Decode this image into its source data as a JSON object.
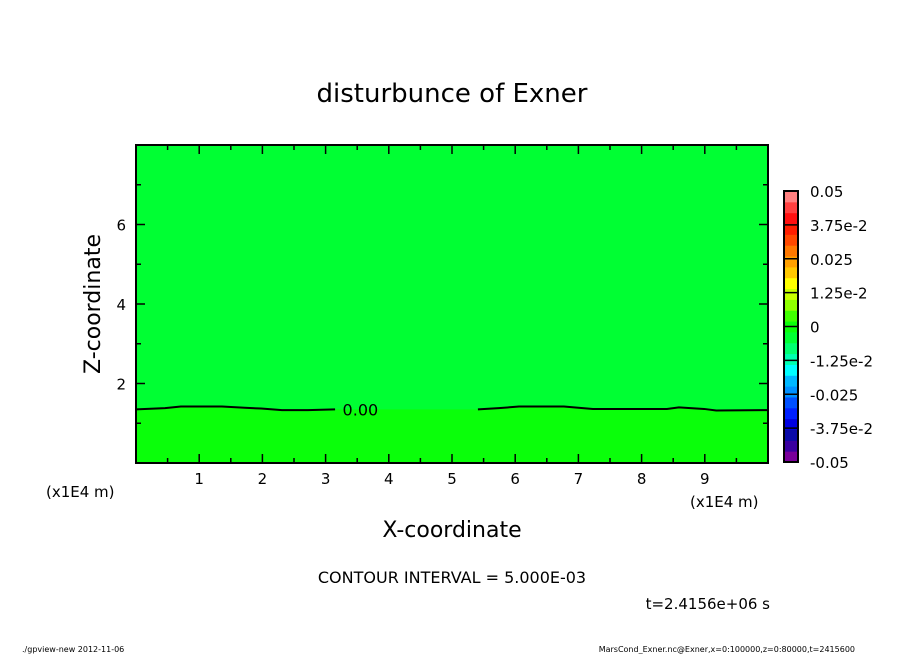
{
  "chart_data": {
    "type": "heatmap",
    "subtype": "contour",
    "title": "disturbunce of Exner",
    "xlabel": "X-coordinate",
    "ylabel": "Z-coordinate",
    "x_unit_label": "(x1E4 m)",
    "z_unit_label": "(x1E4 m)",
    "xlim": [
      0,
      10
    ],
    "ylim": [
      0,
      8
    ],
    "x_ticks": [
      1,
      2,
      3,
      4,
      5,
      6,
      7,
      8,
      9
    ],
    "y_ticks": [
      2,
      4,
      6
    ],
    "contour_interval_text": "CONTOUR INTERVAL = 5.000E-03",
    "time_text": "t=2.4156e+06 s",
    "contours": [
      {
        "level_label": "0.00",
        "label_x": 3.55,
        "points": [
          [
            0,
            1.35
          ],
          [
            0.46,
            1.38
          ],
          [
            0.71,
            1.42
          ],
          [
            1.36,
            1.42
          ],
          [
            1.72,
            1.39
          ],
          [
            1.98,
            1.37
          ],
          [
            2.31,
            1.33
          ],
          [
            2.72,
            1.33
          ],
          [
            3.15,
            1.35
          ],
          [
            3.92,
            1.35
          ],
          [
            5.41,
            1.35
          ],
          [
            5.74,
            1.38
          ],
          [
            6.06,
            1.42
          ],
          [
            6.77,
            1.42
          ],
          [
            7.23,
            1.36
          ],
          [
            8.4,
            1.36
          ],
          [
            8.59,
            1.4
          ],
          [
            8.99,
            1.36
          ],
          [
            9.18,
            1.32
          ],
          [
            10,
            1.33
          ]
        ]
      }
    ],
    "fill_above_color": "#00ff33",
    "fill_below_color": "#0aff0a",
    "colorbar": {
      "min": -0.05,
      "max": 0.05,
      "labels": [
        "-0.05",
        "-3.75e-2",
        "-0.025",
        "-1.25e-2",
        "0",
        "1.25e-2",
        "0.025",
        "3.75e-2",
        "0.05"
      ],
      "colors": [
        "#7a009a",
        "#3a00a0",
        "#0a0aa8",
        "#0000e0",
        "#0020ff",
        "#0050ff",
        "#0090ff",
        "#00b8ff",
        "#00ffff",
        "#00ffb0",
        "#00ff70",
        "#00ff33",
        "#0aff0a",
        "#40ff00",
        "#90ff00",
        "#c8ff00",
        "#ffff00",
        "#ffc800",
        "#ffa000",
        "#ff7800",
        "#ff4800",
        "#ff1e00",
        "#ff1010",
        "#ff4040",
        "#ff8080"
      ]
    }
  },
  "footer": {
    "left": "./gpview-new  2012-11-06",
    "right": "MarsCond_Exner.nc@Exner,x=0:100000,z=0:80000,t=2415600"
  }
}
